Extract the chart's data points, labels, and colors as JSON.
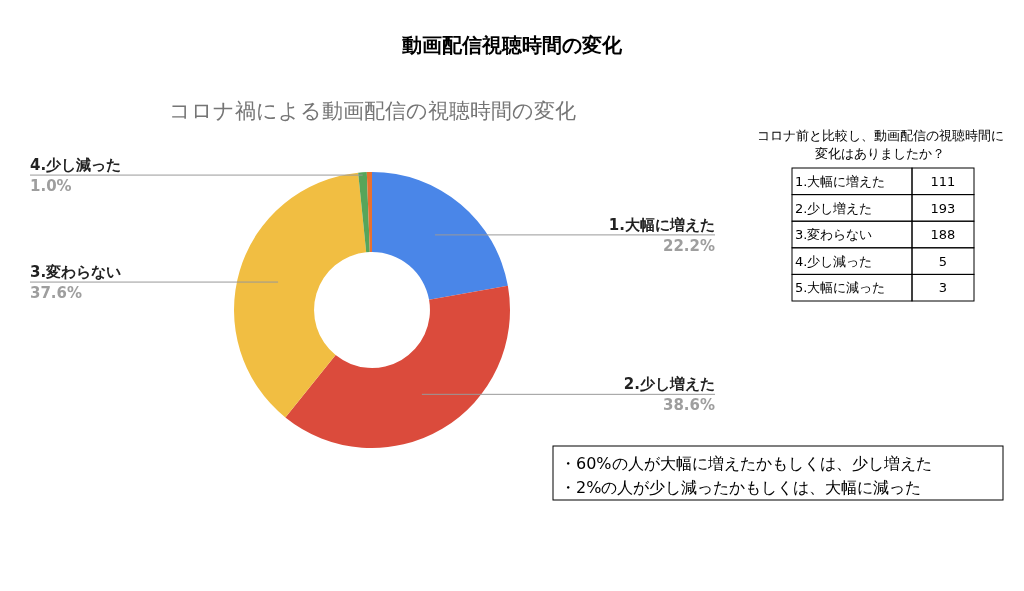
{
  "chart_data": {
    "type": "donut",
    "title": "動画配信視聴時間の変化",
    "subtitle": "コロナ禍による動画配信の視聴時間の変化",
    "categories": [
      "1.大幅に増えた",
      "2.少し増えた",
      "3.変わらない",
      "4.少し減った",
      null
    ],
    "values": [
      22.2,
      38.6,
      37.6,
      1.0,
      0.6
    ],
    "value_labels": [
      "22.2%",
      "38.6%",
      "37.6%",
      "1.0%",
      null
    ],
    "colors": [
      "#4a86e8",
      "#db4b3c",
      "#f1be42",
      "#57a55a",
      "#e8712f"
    ],
    "legend": false,
    "annotations": [
      "コロナ前と比較し、動画配信の視聴時間に変化はありましたか？",
      "1.大幅に増えた",
      "111",
      "2.少し増えた",
      "193",
      "3.変わらない",
      "188",
      "4.少し減った",
      "5",
      "5.大幅に減った",
      "3",
      "・60%の人が大幅に増えたかもしくは、少し増えた",
      "・2%の人が少し減ったかもしくは、大幅に減った"
    ]
  }
}
